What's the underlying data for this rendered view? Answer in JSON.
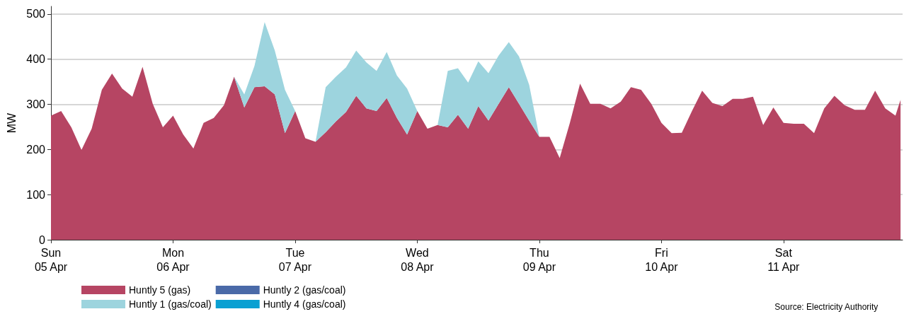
{
  "chart_data": {
    "type": "area",
    "stacked": true,
    "ylabel": "MW",
    "grid": "y",
    "legend": "bottom left",
    "marker": "none",
    "annotations": [
      "Source: Electricity Authority"
    ],
    "xlim": [
      "--04-05T00:00",
      "--04-11T23:24"
    ],
    "ylim": [
      0,
      517
    ],
    "yticks": [
      0,
      100,
      200,
      300,
      400,
      500
    ],
    "xticks": [
      {
        "value": "--04-05",
        "label": "Sun\n05 Apr"
      },
      {
        "value": "--04-06",
        "label": "Mon\n06 Apr"
      },
      {
        "value": "--04-07",
        "label": "Tue\n07 Apr"
      },
      {
        "value": "--04-08",
        "label": "Wed\n08 Apr"
      },
      {
        "value": "--04-09",
        "label": "Thu\n09 Apr"
      },
      {
        "value": "--04-10",
        "label": "Fri\n10 Apr"
      },
      {
        "value": "--04-11",
        "label": "Sat\n11 Apr"
      }
    ],
    "x": [
      "--04-05T00:00",
      "--04-05T02:00",
      "--04-05T04:00",
      "--04-05T06:00",
      "--04-05T08:00",
      "--04-05T10:00",
      "--04-05T12:00",
      "--04-05T14:00",
      "--04-05T16:00",
      "--04-05T18:00",
      "--04-05T20:00",
      "--04-05T22:00",
      "--04-06T00:00",
      "--04-06T02:00",
      "--04-06T04:00",
      "--04-06T06:00",
      "--04-06T08:00",
      "--04-06T10:00",
      "--04-06T12:00",
      "--04-06T14:00",
      "--04-06T16:00",
      "--04-06T18:00",
      "--04-06T20:00",
      "--04-06T22:00",
      "--04-07T00:00",
      "--04-07T02:00",
      "--04-07T04:00",
      "--04-07T06:00",
      "--04-07T08:00",
      "--04-07T10:00",
      "--04-07T12:00",
      "--04-07T14:00",
      "--04-07T16:00",
      "--04-07T18:00",
      "--04-07T20:00",
      "--04-07T22:00",
      "--04-08T00:00",
      "--04-08T02:00",
      "--04-08T04:00",
      "--04-08T06:00",
      "--04-08T08:00",
      "--04-08T10:00",
      "--04-08T12:00",
      "--04-08T14:00",
      "--04-08T16:00",
      "--04-08T18:00",
      "--04-08T20:00",
      "--04-08T22:00",
      "--04-09T00:00",
      "--04-09T02:00",
      "--04-09T04:00",
      "--04-09T06:00",
      "--04-09T08:00",
      "--04-09T10:00",
      "--04-09T12:00",
      "--04-09T14:00",
      "--04-09T16:00",
      "--04-09T18:00",
      "--04-09T20:00",
      "--04-09T22:00",
      "--04-10T00:00",
      "--04-10T02:00",
      "--04-10T04:00",
      "--04-10T06:00",
      "--04-10T08:00",
      "--04-10T10:00",
      "--04-10T12:00",
      "--04-10T14:00",
      "--04-10T16:00",
      "--04-10T18:00",
      "--04-10T20:00",
      "--04-10T22:00",
      "--04-11T00:00",
      "--04-11T02:00",
      "--04-11T04:00",
      "--04-11T06:00",
      "--04-11T08:00",
      "--04-11T10:00",
      "--04-11T12:00",
      "--04-11T14:00",
      "--04-11T16:00",
      "--04-11T18:00",
      "--04-11T20:00",
      "--04-11T22:00",
      "--04-11T23:00"
    ],
    "series": [
      {
        "name": "Huntly 5 (gas)",
        "color": "#b64563",
        "values": [
          275,
          285,
          249,
          199,
          246,
          332,
          368,
          335,
          317,
          383,
          301,
          249,
          275,
          233,
          202,
          259,
          270,
          298,
          361,
          293,
          338,
          340,
          322,
          236,
          285,
          225,
          217,
          238,
          262,
          283,
          319,
          291,
          285,
          314,
          270,
          233,
          285,
          246,
          254,
          249,
          277,
          246,
          296,
          264,
          301,
          338,
          301,
          264,
          228,
          228,
          181,
          259,
          346,
          301,
          301,
          291,
          306,
          338,
          332,
          301,
          259,
          236,
          237,
          285,
          330,
          303,
          296,
          312,
          312,
          317,
          254,
          293,
          259,
          257,
          257,
          236,
          291,
          319,
          298,
          288,
          288,
          330,
          291,
          275,
          310
        ]
      },
      {
        "name": "Huntly 1 (gas/coal)",
        "color": "#9dd4de",
        "values": [
          0,
          0,
          0,
          0,
          0,
          0,
          0,
          0,
          0,
          0,
          0,
          0,
          0,
          0,
          0,
          0,
          0,
          0,
          0,
          29,
          47,
          142,
          97,
          96,
          0,
          0,
          0,
          100,
          99,
          99,
          100,
          102,
          89,
          102,
          94,
          102,
          0,
          0,
          0,
          125,
          103,
          102,
          99,
          105,
          107,
          100,
          105,
          79,
          0,
          0,
          0,
          0,
          0,
          0,
          0,
          0,
          0,
          0,
          0,
          0,
          0,
          0,
          0,
          0,
          0,
          0,
          0,
          0,
          0,
          0,
          0,
          0,
          0,
          0,
          0,
          0,
          0,
          0,
          0,
          0,
          0,
          0,
          0,
          0,
          0
        ]
      },
      {
        "name": "Huntly 2 (gas/coal)",
        "color": "#4a6aa8",
        "values": [
          null,
          null,
          null,
          null,
          null,
          null,
          null,
          null,
          null,
          null,
          null,
          null,
          null,
          null,
          null,
          null,
          null,
          null,
          null,
          null,
          null,
          null,
          null,
          null,
          null,
          null,
          null,
          null,
          null,
          null,
          null,
          null,
          null,
          null,
          null,
          null,
          null,
          null,
          null,
          null,
          null,
          null,
          null,
          null,
          null,
          null,
          null,
          null,
          null,
          null,
          null,
          null,
          null,
          null,
          null,
          null,
          null,
          null,
          null,
          null,
          null,
          null,
          null,
          null,
          null,
          null,
          null,
          null,
          null,
          null,
          null,
          null,
          null,
          null,
          null,
          null,
          null,
          null,
          null,
          null,
          null,
          null,
          null,
          null,
          null
        ]
      },
      {
        "name": "Huntly 4 (gas/coal)",
        "color": "#0aa0d2",
        "values": [
          null,
          null,
          null,
          null,
          null,
          null,
          null,
          null,
          null,
          null,
          null,
          null,
          null,
          null,
          null,
          null,
          null,
          null,
          null,
          null,
          null,
          null,
          null,
          null,
          null,
          null,
          null,
          null,
          null,
          null,
          null,
          null,
          null,
          null,
          null,
          null,
          null,
          null,
          null,
          null,
          null,
          null,
          null,
          null,
          null,
          null,
          null,
          null,
          null,
          null,
          null,
          null,
          null,
          null,
          null,
          null,
          null,
          null,
          null,
          null,
          null,
          null,
          null,
          null,
          null,
          null,
          null,
          null,
          null,
          null,
          null,
          null,
          null,
          null,
          null,
          null,
          null,
          null,
          null,
          null,
          null,
          null,
          null,
          null,
          null
        ]
      }
    ]
  }
}
